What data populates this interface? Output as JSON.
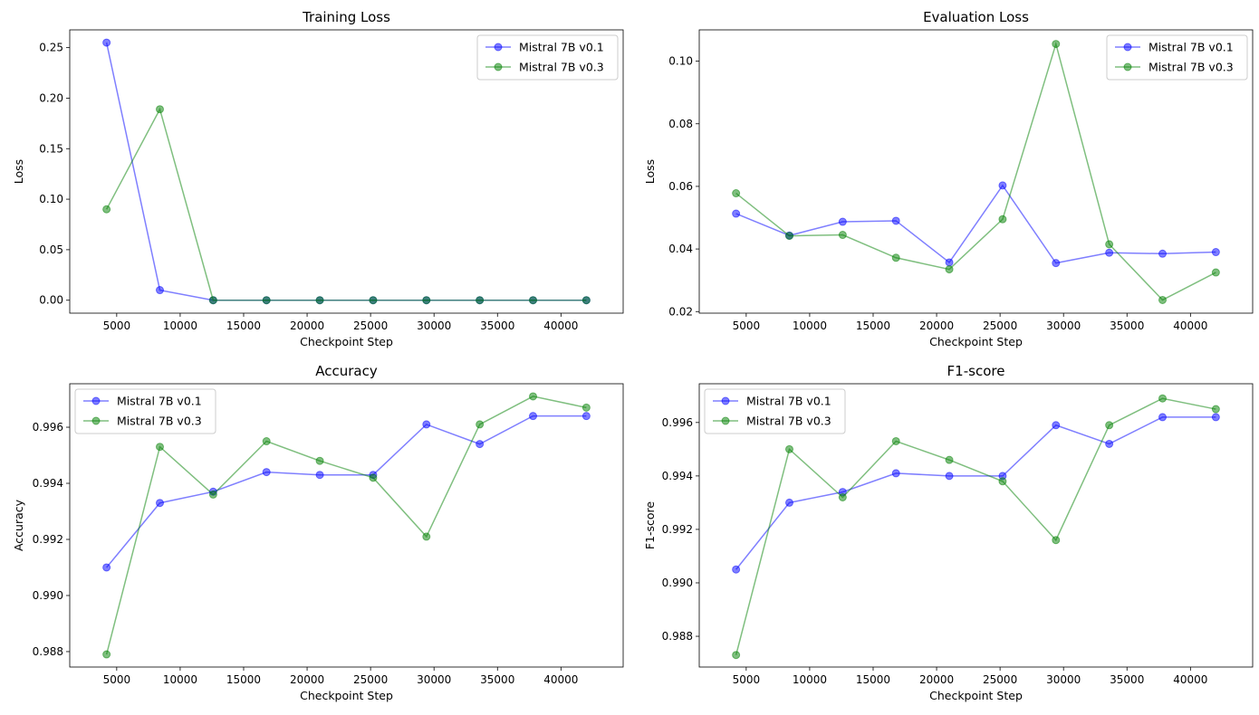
{
  "colors": {
    "series_1": "#0000ff",
    "series_2": "#008000"
  },
  "chart_data": [
    {
      "type": "line",
      "title": "Training Loss",
      "xlabel": "Checkpoint Step",
      "ylabel": "Loss",
      "x": [
        4200,
        8400,
        12600,
        16800,
        21000,
        25200,
        29400,
        33600,
        37800,
        42000
      ],
      "xlim": [
        1300,
        44900
      ],
      "ylim": [
        -0.0128,
        0.2676
      ],
      "xticks": [
        5000,
        10000,
        15000,
        20000,
        25000,
        30000,
        35000,
        40000
      ],
      "yticks": [
        0.0,
        0.05,
        0.1,
        0.15,
        0.2,
        0.25
      ],
      "ytick_labels": [
        "0.00",
        "0.05",
        "0.10",
        "0.15",
        "0.20",
        "0.25"
      ],
      "legend_position": "upper-right",
      "grid": false,
      "series": [
        {
          "name": "Mistral 7B v0.1",
          "values": [
            0.255,
            0.01,
            0.0,
            0.0,
            0.0,
            0.0,
            0.0,
            0.0,
            0.0,
            0.0
          ]
        },
        {
          "name": "Mistral 7B v0.3",
          "values": [
            0.09,
            0.189,
            0.0,
            0.0,
            0.0,
            0.0,
            0.0,
            0.0,
            0.0,
            0.0
          ]
        }
      ]
    },
    {
      "type": "line",
      "title": "Evaluation Loss",
      "xlabel": "Checkpoint Step",
      "ylabel": "Loss",
      "x": [
        4200,
        8400,
        12600,
        16800,
        21000,
        25200,
        29400,
        33600,
        37800,
        42000
      ],
      "xlim": [
        1300,
        44900
      ],
      "ylim": [
        0.0195,
        0.11
      ],
      "xticks": [
        5000,
        10000,
        15000,
        20000,
        25000,
        30000,
        35000,
        40000
      ],
      "yticks": [
        0.02,
        0.04,
        0.06,
        0.08,
        0.1
      ],
      "ytick_labels": [
        "0.02",
        "0.04",
        "0.06",
        "0.08",
        "0.10"
      ],
      "legend_position": "upper-right",
      "grid": false,
      "series": [
        {
          "name": "Mistral 7B v0.1",
          "values": [
            0.0513,
            0.0443,
            0.0487,
            0.049,
            0.0357,
            0.0603,
            0.0355,
            0.0388,
            0.0385,
            0.039
          ]
        },
        {
          "name": "Mistral 7B v0.3",
          "values": [
            0.0578,
            0.0442,
            0.0445,
            0.0372,
            0.0335,
            0.0495,
            0.1055,
            0.0415,
            0.0237,
            0.0325
          ]
        }
      ]
    },
    {
      "type": "line",
      "title": "Accuracy",
      "xlabel": "Checkpoint Step",
      "ylabel": "Accuracy",
      "x": [
        4200,
        8400,
        12600,
        16800,
        21000,
        25200,
        29400,
        33600,
        37800,
        42000
      ],
      "xlim": [
        1300,
        44900
      ],
      "ylim": [
        0.98745,
        0.99755
      ],
      "xticks": [
        5000,
        10000,
        15000,
        20000,
        25000,
        30000,
        35000,
        40000
      ],
      "yticks": [
        0.988,
        0.99,
        0.992,
        0.994,
        0.996
      ],
      "ytick_labels": [
        "0.988",
        "0.990",
        "0.992",
        "0.994",
        "0.996"
      ],
      "legend_position": "upper-left",
      "grid": false,
      "series": [
        {
          "name": "Mistral 7B v0.1",
          "values": [
            0.991,
            0.9933,
            0.9937,
            0.9944,
            0.9943,
            0.9943,
            0.9961,
            0.9954,
            0.9964,
            0.9964
          ]
        },
        {
          "name": "Mistral 7B v0.3",
          "values": [
            0.9879,
            0.9953,
            0.9936,
            0.9955,
            0.9948,
            0.9942,
            0.9921,
            0.9961,
            0.9971,
            0.9967
          ]
        }
      ]
    },
    {
      "type": "line",
      "title": "F1-score",
      "xlabel": "Checkpoint Step",
      "ylabel": "F1-score",
      "x": [
        4200,
        8400,
        12600,
        16800,
        21000,
        25200,
        29400,
        33600,
        37800,
        42000
      ],
      "xlim": [
        1300,
        44900
      ],
      "ylim": [
        0.98685,
        0.99745
      ],
      "xticks": [
        5000,
        10000,
        15000,
        20000,
        25000,
        30000,
        35000,
        40000
      ],
      "yticks": [
        0.988,
        0.99,
        0.992,
        0.994,
        0.996
      ],
      "ytick_labels": [
        "0.988",
        "0.990",
        "0.992",
        "0.994",
        "0.996"
      ],
      "legend_position": "upper-left",
      "grid": false,
      "series": [
        {
          "name": "Mistral 7B v0.1",
          "values": [
            0.9905,
            0.993,
            0.9934,
            0.9941,
            0.994,
            0.994,
            0.9959,
            0.9952,
            0.9962,
            0.9962
          ]
        },
        {
          "name": "Mistral 7B v0.3",
          "values": [
            0.9873,
            0.995,
            0.9932,
            0.9953,
            0.9946,
            0.9938,
            0.9916,
            0.9959,
            0.9969,
            0.9965
          ]
        }
      ]
    }
  ]
}
